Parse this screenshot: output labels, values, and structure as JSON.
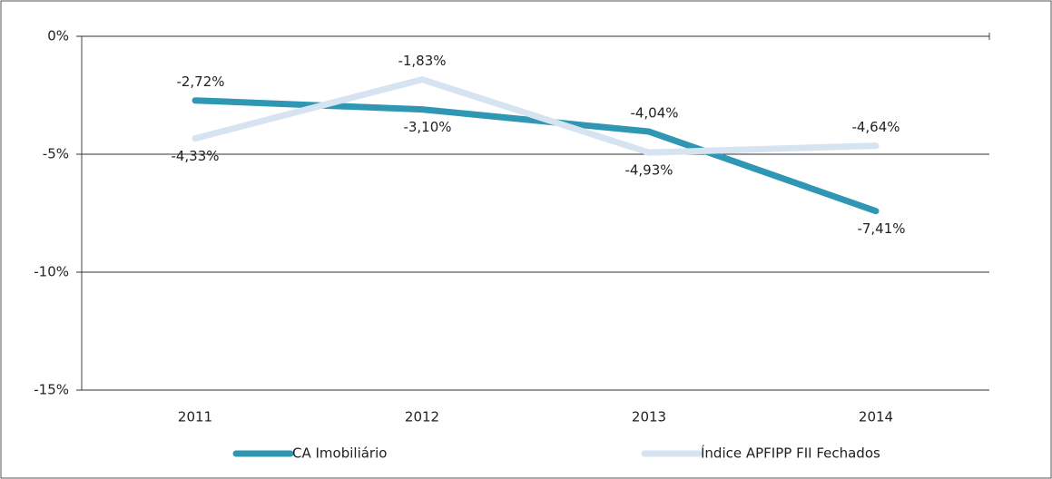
{
  "chart_data": {
    "type": "line",
    "categories": [
      "2011",
      "2012",
      "2013",
      "2014"
    ],
    "series": [
      {
        "name": "CA Imobiliário",
        "color": "#2f97b3",
        "values": [
          -2.72,
          -3.1,
          -4.04,
          -7.41
        ],
        "value_labels": [
          "-2,72%",
          "-3,10%",
          "-4,04%",
          "-7,41%"
        ]
      },
      {
        "name": "Índice APFIPP FII Fechados",
        "color": "#d6e3f0",
        "values": [
          -4.33,
          -1.83,
          -4.93,
          -4.64
        ],
        "value_labels": [
          "-4,33%",
          "-1,83%",
          "-4,93%",
          "-4,64%"
        ]
      }
    ],
    "ylim": [
      -15,
      0
    ],
    "yticks": [
      {
        "value": 0,
        "label": "0%"
      },
      {
        "value": -5,
        "label": "-5%"
      },
      {
        "value": -10,
        "label": "-10%"
      },
      {
        "value": -15,
        "label": "-15%"
      }
    ],
    "grid": true,
    "legend": "bottom"
  }
}
